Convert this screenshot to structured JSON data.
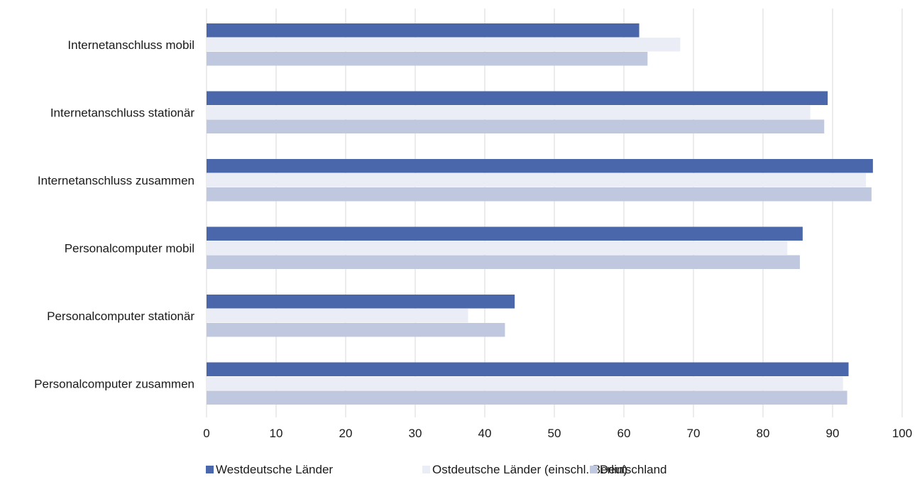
{
  "chart_data": {
    "type": "bar",
    "orientation": "horizontal",
    "categories": [
      "Internetanschluss mobil",
      "Internetanschluss stationär",
      "Internetanschluss zusammen",
      "Personalcomputer mobil",
      "Personalcomputer stationär",
      "Personalcomputer zusammen"
    ],
    "series": [
      {
        "name": "Westdeutsche Länder",
        "color": "#4a67ab",
        "values": [
          62.2,
          89.3,
          95.8,
          85.7,
          44.3,
          92.3
        ]
      },
      {
        "name": "Ostdeutsche Länder (einschl. Berlin)",
        "color": "#eaedf6",
        "values": [
          68.1,
          86.8,
          94.8,
          83.5,
          37.6,
          91.5
        ]
      },
      {
        "name": "Deutschland",
        "color": "#bfc8de",
        "values": [
          63.4,
          88.8,
          95.6,
          85.3,
          42.9,
          92.1
        ]
      }
    ],
    "x_ticks": [
      "0",
      "10",
      "20",
      "30",
      "40",
      "50",
      "60",
      "70",
      "80",
      "90",
      "100"
    ],
    "xlim": [
      0,
      100
    ],
    "grid": true,
    "legend_position": "bottom",
    "title": "",
    "xlabel": "",
    "ylabel": ""
  }
}
